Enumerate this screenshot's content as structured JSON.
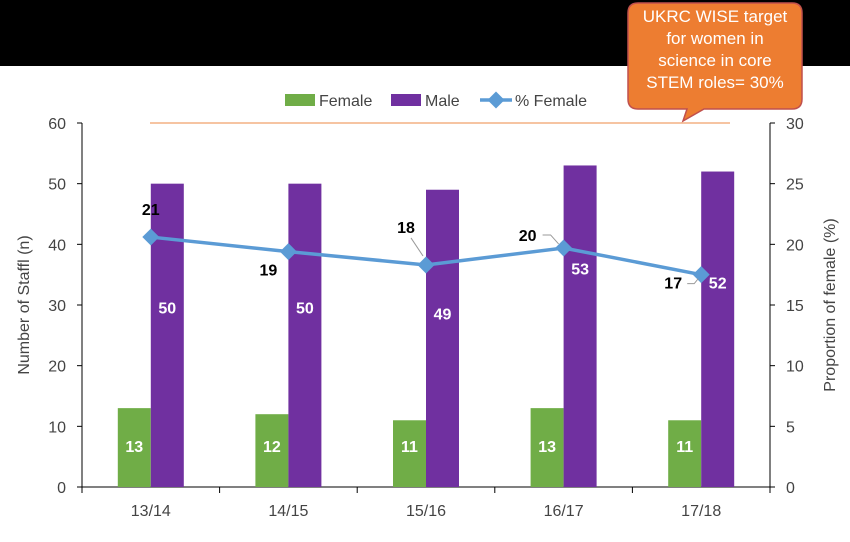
{
  "colors": {
    "female": "#70ad47",
    "male": "#7030a0",
    "pct_line": "#5b9bd5",
    "target_line": "#f4b183",
    "callout": "#ed7d31",
    "callout_border": "#c0504d",
    "header": "#000000"
  },
  "callout": {
    "lines": [
      "UKRC WISE target",
      "for women in",
      "science in core",
      "STEM roles= 30%"
    ]
  },
  "chart_data": {
    "type": "bar",
    "categories": [
      "13/14",
      "14/15",
      "15/16",
      "16/17",
      "17/18"
    ],
    "series": [
      {
        "name": "Female",
        "type": "bar",
        "axis": "left",
        "values": [
          13,
          12,
          11,
          13,
          11
        ]
      },
      {
        "name": "Male",
        "type": "bar",
        "axis": "left",
        "values": [
          50,
          50,
          49,
          53,
          52
        ]
      },
      {
        "name": "% Female",
        "type": "line",
        "axis": "right",
        "values": [
          20.6,
          19.4,
          18.3,
          19.7,
          17.5
        ],
        "labels": [
          "21",
          "19",
          "18",
          "20",
          "17"
        ]
      }
    ],
    "target_line": {
      "axis": "right",
      "value": 30
    },
    "ylabel": "Number of Staffl (n)",
    "y2label": "Proportion of female (%)",
    "ylim": [
      0,
      60
    ],
    "y2lim": [
      0,
      30
    ],
    "yticks": [
      0,
      10,
      20,
      30,
      40,
      50,
      60
    ],
    "y2ticks": [
      0,
      5,
      10,
      15,
      20,
      25,
      30
    ],
    "legend_position": "top-center",
    "grid": false
  }
}
